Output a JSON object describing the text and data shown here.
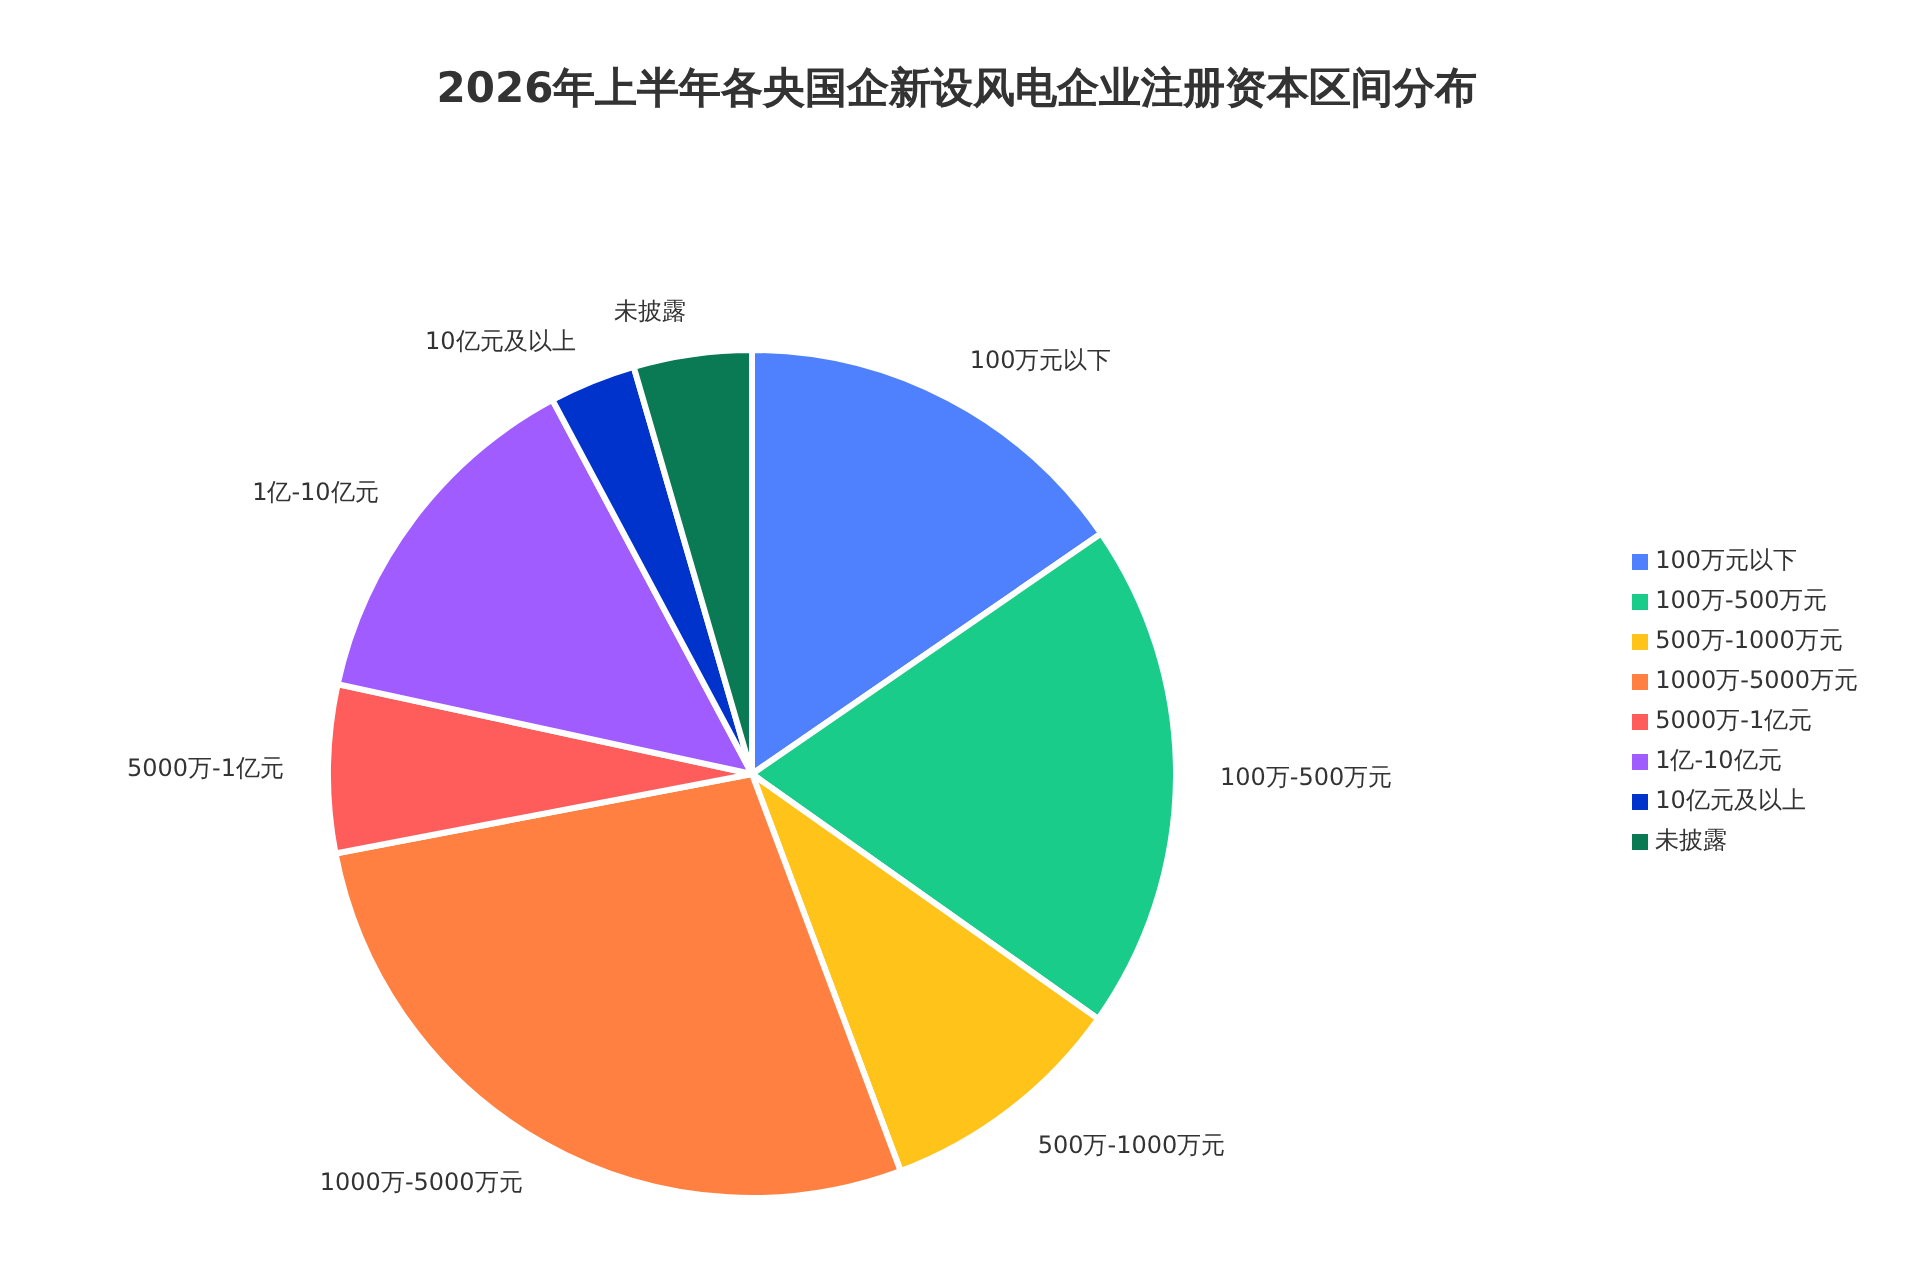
{
  "chart_data": {
    "type": "pie",
    "title": "2026年上半年各央国企新设风电企业注册资本区间分布",
    "categories": [
      "100万元以下",
      "100万-500万元",
      "500万-1000万元",
      "1000万-5000万元",
      "5000万-1亿元",
      "1亿-10亿元",
      "10亿元及以上",
      "未披露"
    ],
    "values": [
      15.4,
      19.4,
      9.5,
      27.7,
      6.4,
      13.8,
      3.3,
      4.5
    ],
    "colors": [
      "#4f81ff",
      "#19cc8a",
      "#ffc31a",
      "#ff8040",
      "#ff5c5c",
      "#a05cff",
      "#0033cc",
      "#0a7a55"
    ],
    "legend": "right"
  }
}
